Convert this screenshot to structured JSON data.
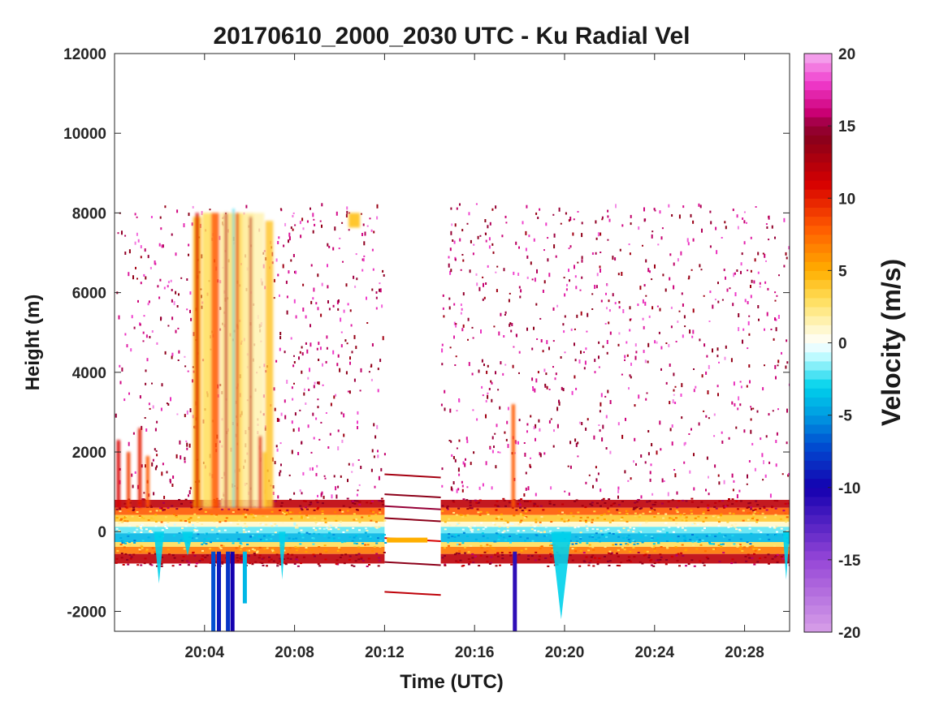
{
  "chart_data": {
    "type": "heatmap",
    "title": "20170610_2000_2030 UTC - Ku Radial Vel",
    "xlabel": "Time (UTC)",
    "ylabel": "Height (m)",
    "colorbar_label": "Velocity (m/s)",
    "x_ticks": [
      "20:04",
      "20:08",
      "20:12",
      "20:16",
      "20:20",
      "20:24",
      "20:28"
    ],
    "x_tick_minutes": [
      4,
      8,
      12,
      16,
      20,
      24,
      28
    ],
    "x_range_minutes": [
      0,
      30
    ],
    "y_ticks": [
      -2000,
      0,
      2000,
      4000,
      6000,
      8000,
      10000,
      12000
    ],
    "y_tick_labels": [
      "-2000",
      "0",
      "2000",
      "4000",
      "6000",
      "8000",
      "10000",
      "12000"
    ],
    "ylim": [
      -2500,
      12000
    ],
    "colorbar_ticks": [
      -20,
      -15,
      -10,
      -5,
      0,
      5,
      10,
      15,
      20
    ],
    "colorbar_tick_labels": [
      "-20",
      "-15",
      "-10",
      "-5",
      "0",
      "5",
      "10",
      "15",
      "20"
    ],
    "clim": [
      -20,
      20
    ],
    "grid": false,
    "data_top_height_m": 8000,
    "no_data_gap_minutes": [
      12,
      14.5
    ],
    "surface_band": {
      "height_range_m": [
        -800,
        800
      ],
      "upper_layer_velocity": 12,
      "center_velocity": -4,
      "lower_layer_velocity": 12
    },
    "features": [
      {
        "name": "convective plumes",
        "time_minutes": [
          3.3,
          7.2
        ],
        "height_range_m": [
          0,
          8000
        ],
        "velocity_range": [
          2,
          12
        ]
      },
      {
        "name": "strong downward streaks",
        "time_minutes": [
          4.2,
          5.2
        ],
        "height_range_m": [
          -2500,
          -500
        ],
        "velocity_range": [
          -10,
          -5
        ]
      },
      {
        "name": "narrow spike",
        "time_minutes": [
          17.6,
          17.8
        ],
        "height_range_m": [
          0,
          3200
        ],
        "velocity_range": [
          5,
          12
        ]
      },
      {
        "name": "surface dip",
        "time_minutes": [
          19.4,
          20.3
        ],
        "height_range_m": [
          -2200,
          0
        ],
        "velocity_range": [
          -5,
          -1
        ]
      }
    ]
  }
}
